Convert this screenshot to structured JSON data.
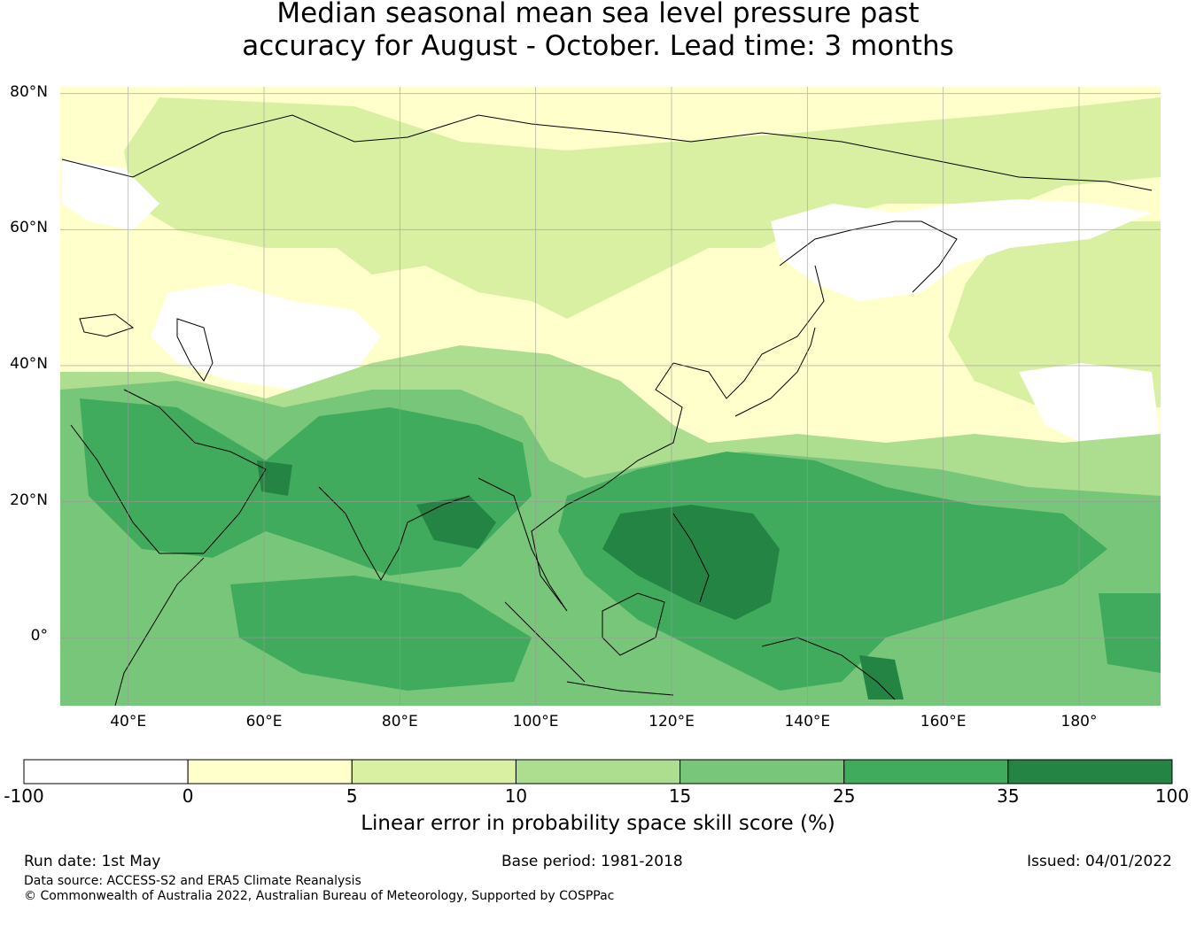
{
  "title_line1": "Median seasonal mean sea level pressure past",
  "title_line2": "accuracy for August - October. Lead time: 3 months",
  "map": {
    "lon_range": [
      30,
      192
    ],
    "lat_range": [
      -10,
      81
    ],
    "lat_ticks": [
      {
        "value": 80,
        "label": "80°N"
      },
      {
        "value": 60,
        "label": "60°N"
      },
      {
        "value": 40,
        "label": "40°N"
      },
      {
        "value": 20,
        "label": "20°N"
      },
      {
        "value": 0,
        "label": "0°"
      }
    ],
    "lon_ticks": [
      {
        "value": 40,
        "label": "40°E"
      },
      {
        "value": 60,
        "label": "60°E"
      },
      {
        "value": 80,
        "label": "80°E"
      },
      {
        "value": 100,
        "label": "100°E"
      },
      {
        "value": 120,
        "label": "120°E"
      },
      {
        "value": 140,
        "label": "140°E"
      },
      {
        "value": 160,
        "label": "160°E"
      },
      {
        "value": 180,
        "label": "180°"
      }
    ]
  },
  "colorbar": {
    "bins": [
      {
        "from": -100,
        "to": 0,
        "color": "#ffffff"
      },
      {
        "from": 0,
        "to": 5,
        "color": "#ffffcc"
      },
      {
        "from": 5,
        "to": 10,
        "color": "#d9f0a3"
      },
      {
        "from": 10,
        "to": 15,
        "color": "#addd8e"
      },
      {
        "from": 15,
        "to": 25,
        "color": "#78c679"
      },
      {
        "from": 25,
        "to": 35,
        "color": "#41ab5d"
      },
      {
        "from": 35,
        "to": 100,
        "color": "#238443"
      }
    ],
    "tick_labels": [
      "-100",
      "0",
      "5",
      "10",
      "15",
      "25",
      "35",
      "100"
    ],
    "title": "Linear error in probability space skill score (%)"
  },
  "footer": {
    "run_date": "Run date: 1st May",
    "base_period": "Base period: 1981-2018",
    "issued": "Issued: 04/01/2022",
    "data_source": "Data source: ACCESS-S2 and ERA5 Climate Reanalysis",
    "copyright": "© Commonwealth of Australia 2022, Australian Bureau of Meteorology, Supported by COSPPac"
  }
}
